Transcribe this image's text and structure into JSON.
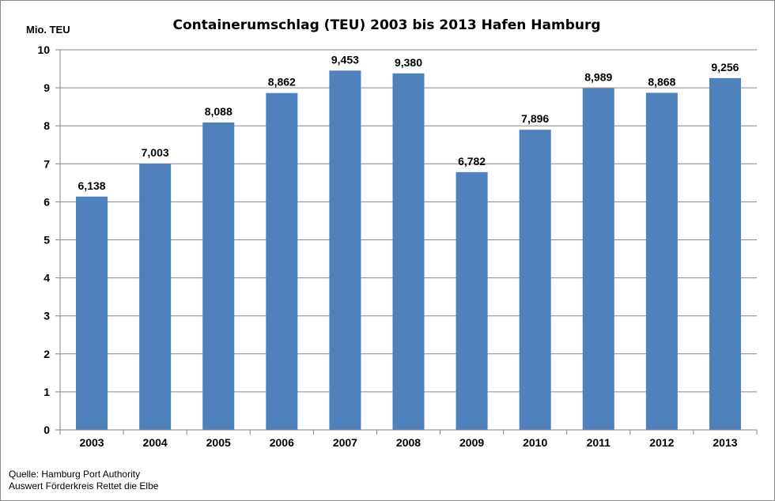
{
  "chart_data": {
    "type": "bar",
    "title": "Containerumschlag  (TEU) 2003 bis 2013 Hafen Hamburg",
    "ylabel": "Mio. TEU",
    "xlabel": "",
    "ylim": [
      0,
      10
    ],
    "yticks": [
      "0",
      "1",
      "2",
      "3",
      "4",
      "5",
      "6",
      "7",
      "8",
      "9",
      "10"
    ],
    "grid": true,
    "categories": [
      "2003",
      "2004",
      "2005",
      "2006",
      "2007",
      "2008",
      "2009",
      "2010",
      "2011",
      "2012",
      "2013"
    ],
    "values": [
      6.138,
      7.003,
      8.088,
      8.862,
      9.453,
      9.38,
      6.782,
      7.896,
      8.989,
      8.868,
      9.256
    ],
    "data_labels": [
      "6,138",
      "7,003",
      "8,088",
      "8,862",
      "9,453",
      "9,380",
      "6,782",
      "7,896",
      "8,989",
      "8,868",
      "9,256"
    ],
    "bar_color": "#4F81BD"
  },
  "source": {
    "line1": "Quelle: Hamburg Port Authority",
    "line2": "Auswert Förderkreis Rettet die Elbe"
  }
}
